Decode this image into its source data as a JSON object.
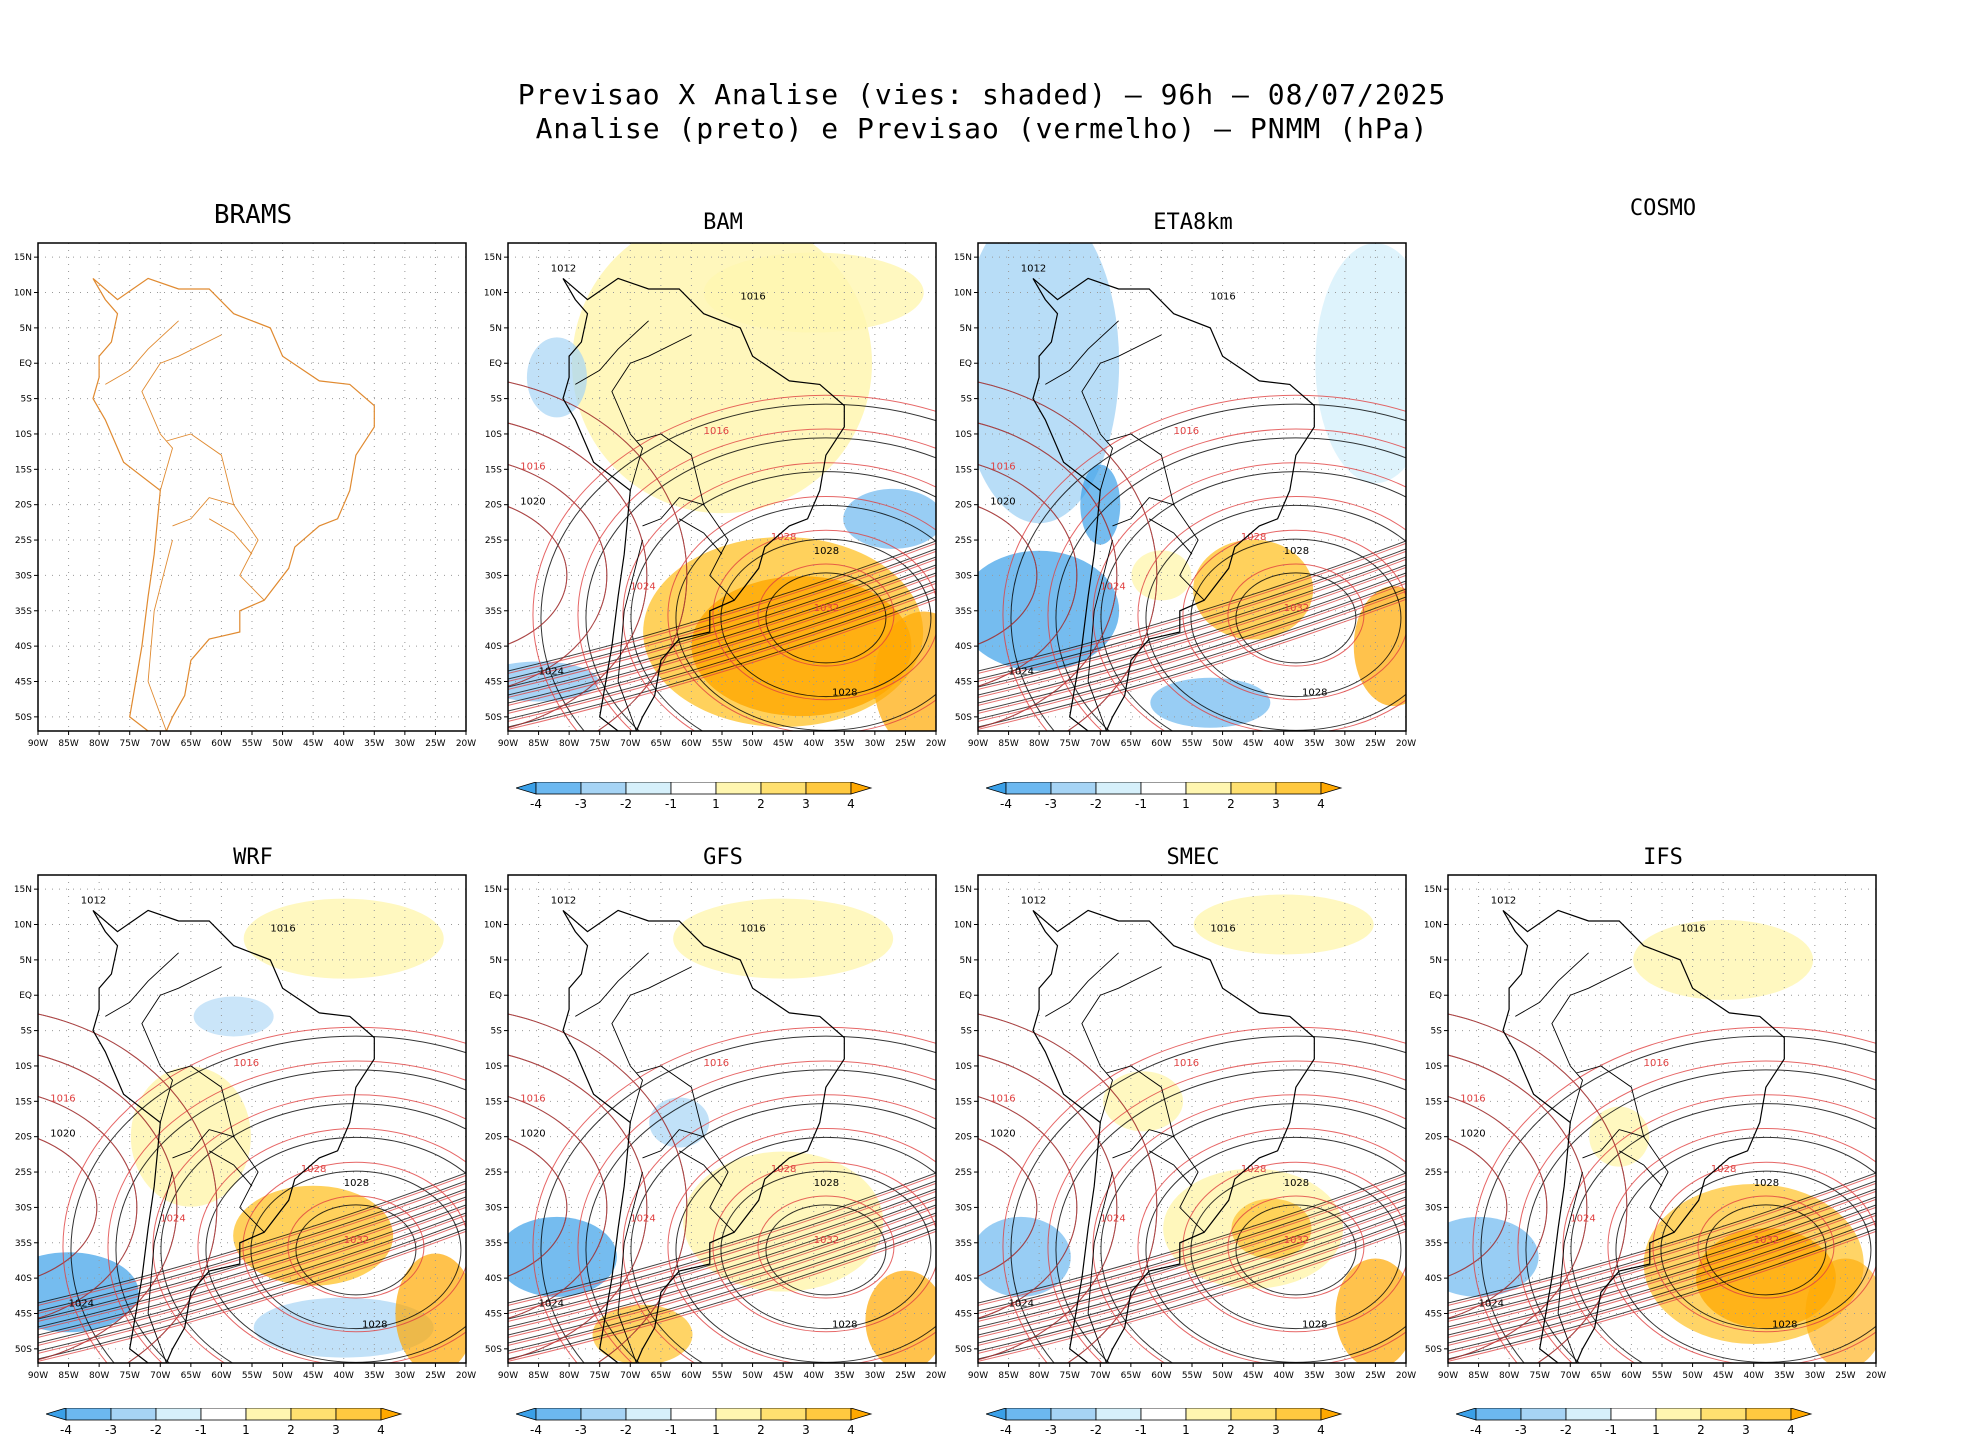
{
  "header": {
    "title_line1": "Previsao X Analise (vies: shaded) – 96h – 08/07/2025",
    "title_line2": "Analise (preto) e Previsao (vermelho) – PNMM (hPa)"
  },
  "panels": [
    {
      "name": "BRAMS",
      "has_data": false
    },
    {
      "name": "BAM",
      "has_data": true
    },
    {
      "name": "ETA8km",
      "has_data": true
    },
    {
      "name": "COSMO",
      "has_data": false
    },
    {
      "name": "WRF",
      "has_data": true
    },
    {
      "name": "GFS",
      "has_data": true
    },
    {
      "name": "SMEC",
      "has_data": true
    },
    {
      "name": "IFS",
      "has_data": true
    }
  ],
  "axes": {
    "lat_ticks": [
      "15N",
      "10N",
      "5N",
      "EQ",
      "5S",
      "10S",
      "15S",
      "20S",
      "25S",
      "30S",
      "35S",
      "40S",
      "45S",
      "50S"
    ],
    "lon_ticks": [
      "90W",
      "85W",
      "80W",
      "75W",
      "70W",
      "65W",
      "60W",
      "55W",
      "50W",
      "45W",
      "40W",
      "35W",
      "30W",
      "25W",
      "20W"
    ]
  },
  "colorbar": {
    "labels": [
      "-4",
      "-3",
      "-2",
      "-1",
      "1",
      "2",
      "3",
      "4"
    ],
    "colors": [
      "#3aa0e8",
      "#6cb8f0",
      "#a6d4f5",
      "#d6f0fb",
      "#ffffff",
      "#fff6b0",
      "#ffe070",
      "#ffc940",
      "#ffa800"
    ]
  },
  "colors": {
    "analysis": "#000000",
    "forecast": "#e04040",
    "coast": "#e08a30"
  },
  "chart_data": {
    "type": "heatmap",
    "title": "Previsao X Analise (vies: shaded) – 96h – 08/07/2025",
    "subtitle": "Analise (preto) e Previsao (vermelho) – PNMM (hPa)",
    "xlabel": "",
    "ylabel": "",
    "lon_range": [
      -90,
      -20
    ],
    "lat_range": [
      -52,
      17
    ],
    "isobar_labels": [
      "1012",
      "1016",
      "1020",
      "1024",
      "1028",
      "1032"
    ]
  }
}
